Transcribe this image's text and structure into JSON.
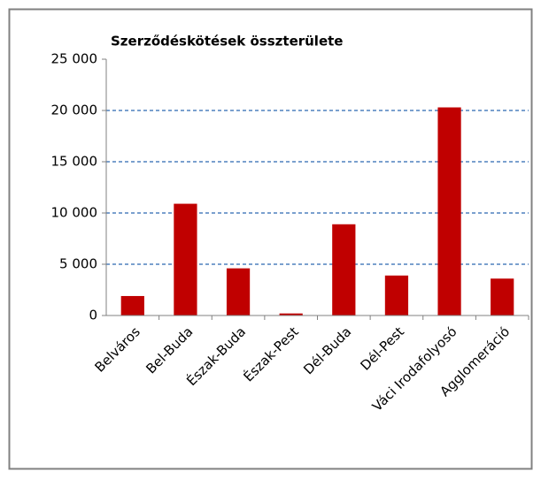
{
  "chart_data": {
    "type": "bar",
    "title": "Szerződéskötések összterülete",
    "categories": [
      "Belváros",
      "Bel-Buda",
      "Észak-Buda",
      "Észak-Pest",
      "Dél-Buda",
      "Dél-Pest",
      "Váci Irodafolyosó",
      "Agglomeráció"
    ],
    "values": [
      1900,
      10900,
      4600,
      200,
      8900,
      3900,
      20300,
      3600
    ],
    "color": "#c00000",
    "ylim": [
      0,
      25000
    ],
    "yticks": [
      0,
      {
        "value": 5000,
        "label": "5 000"
      },
      {
        "value": 10000,
        "label": "10 000"
      },
      {
        "value": 15000,
        "label": "15 000"
      },
      {
        "value": 20000,
        "label": "20 000"
      },
      {
        "value": 25000,
        "label": "25 000"
      }
    ],
    "grid": true
  }
}
